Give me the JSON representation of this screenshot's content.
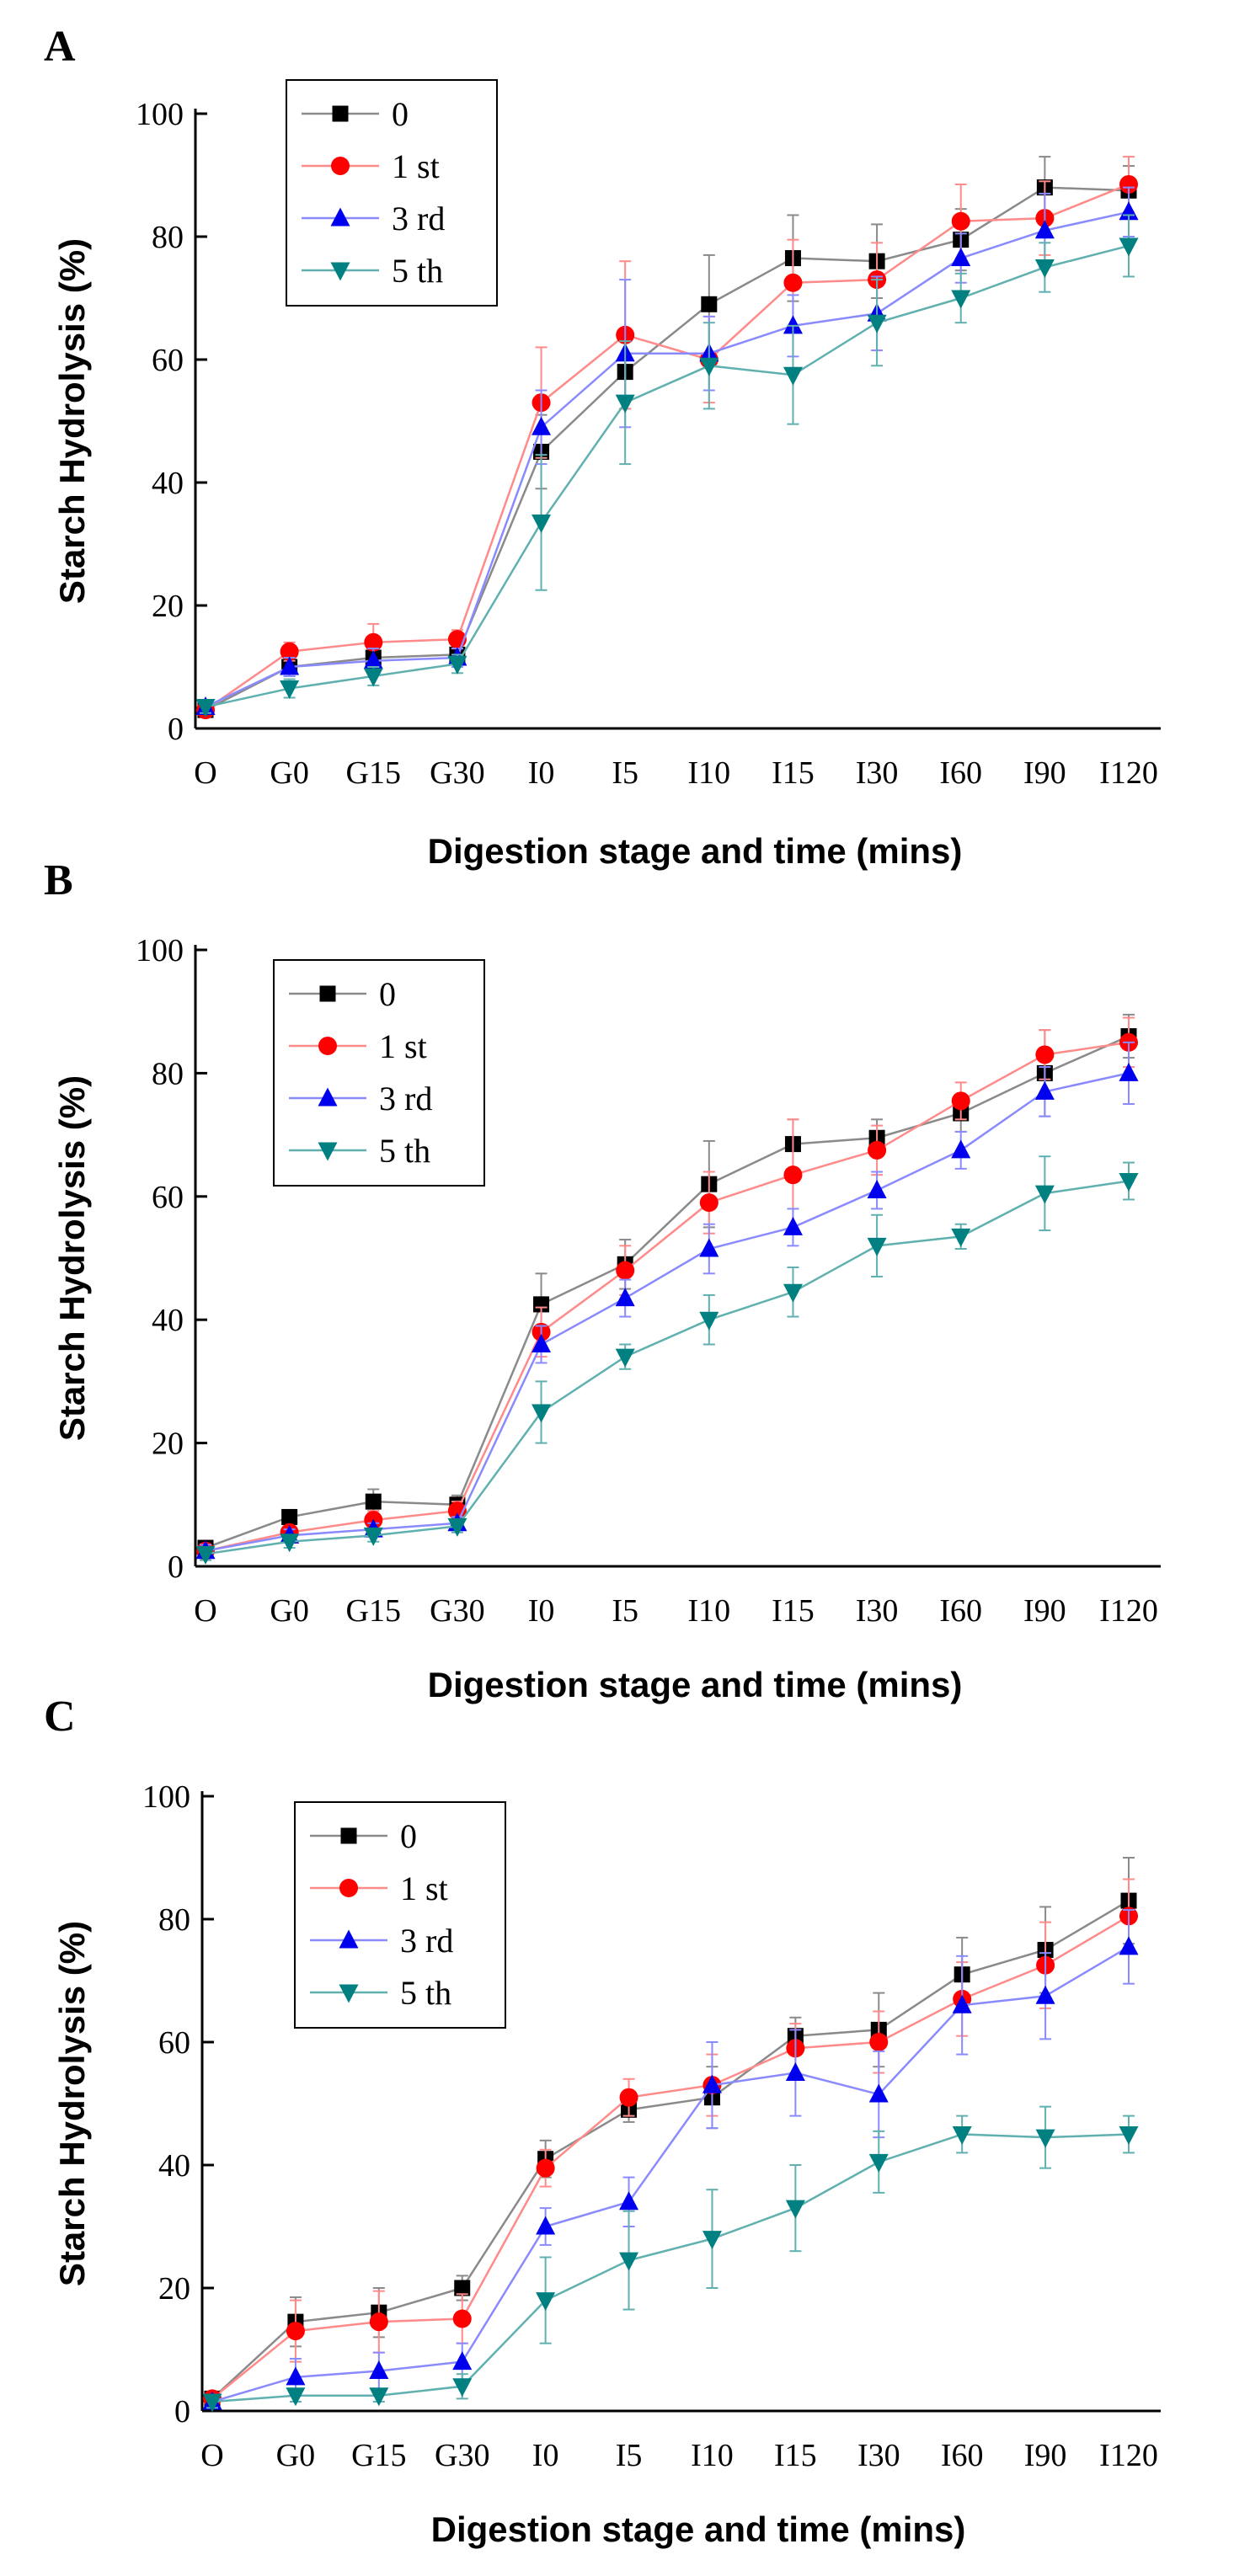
{
  "chart_data": [
    {
      "panel": "A",
      "type": "line",
      "ylabel": "Starch Hydrolysis (%)",
      "xlabel": "Digestion stage and time (mins)",
      "ylim": [
        0,
        100
      ],
      "yticks": [
        0,
        20,
        40,
        60,
        80,
        100
      ],
      "categories": [
        "O",
        "G0",
        "G15",
        "G30",
        "I0",
        "I5",
        "I10",
        "I15",
        "I30",
        "I60",
        "I90",
        "I120"
      ],
      "series": [
        {
          "name": "0",
          "color": "#000000",
          "line": "#8a8a8a",
          "marker": "square",
          "values": [
            3,
            10,
            11.5,
            12,
            45,
            58,
            69,
            76.5,
            76,
            79.5,
            88,
            87.5
          ],
          "errors": [
            1,
            1.5,
            1.5,
            1.5,
            6,
            6,
            8,
            7,
            6,
            5,
            5,
            4
          ]
        },
        {
          "name": "1 st",
          "color": "#ff0000",
          "line": "#ff8a8a",
          "marker": "circle",
          "values": [
            3,
            12.5,
            14,
            14.5,
            53,
            64,
            60,
            72.5,
            73,
            82.5,
            83,
            88.5
          ],
          "errors": [
            1,
            1.5,
            3,
            1.5,
            9,
            12,
            7,
            7,
            6,
            6,
            6,
            4.5
          ]
        },
        {
          "name": "3 rd",
          "color": "#0000ee",
          "line": "#8a8aff",
          "marker": "triangle-up",
          "values": [
            3.5,
            10,
            11,
            11.5,
            49,
            61,
            61,
            65.5,
            67.5,
            76.5,
            81,
            84
          ],
          "errors": [
            1,
            1.5,
            2,
            1.5,
            6,
            12,
            6,
            5,
            6,
            4,
            6,
            4
          ]
        },
        {
          "name": "5 th",
          "color": "#008080",
          "line": "#60b0b0",
          "marker": "triangle-down",
          "values": [
            3.5,
            6.5,
            8.5,
            10.5,
            33.5,
            53,
            59,
            57.5,
            66,
            70,
            75,
            78.5
          ],
          "errors": [
            1,
            1.5,
            1.5,
            1.5,
            11,
            10,
            7,
            8,
            7,
            4,
            4,
            5
          ]
        }
      ],
      "legend": [
        "0",
        "1 st",
        "3 rd",
        "5 th"
      ]
    },
    {
      "panel": "B",
      "type": "line",
      "ylabel": "Starch Hydrolysis (%)",
      "xlabel": "Digestion stage and time (mins)",
      "ylim": [
        0,
        100
      ],
      "yticks": [
        0,
        20,
        40,
        60,
        80,
        100
      ],
      "categories": [
        "O",
        "G0",
        "G15",
        "G30",
        "I0",
        "I5",
        "I10",
        "I15",
        "I30",
        "I60",
        "I90",
        "I120"
      ],
      "series": [
        {
          "name": "0",
          "color": "#000000",
          "line": "#8a8a8a",
          "marker": "square",
          "values": [
            3,
            8,
            10.5,
            10,
            42.5,
            49,
            62,
            68.5,
            69.5,
            73.5,
            80,
            86
          ],
          "errors": [
            1,
            1,
            2,
            1.5,
            5,
            4,
            7,
            4,
            3,
            3,
            7,
            3.5
          ]
        },
        {
          "name": "1 st",
          "color": "#ff0000",
          "line": "#ff8a8a",
          "marker": "circle",
          "values": [
            2.5,
            5.5,
            7.5,
            9,
            38,
            48,
            59,
            63.5,
            67.5,
            75.5,
            83,
            85
          ],
          "errors": [
            1,
            1,
            1.5,
            1.5,
            4,
            4,
            5,
            9,
            4,
            3,
            4,
            4
          ]
        },
        {
          "name": "3 rd",
          "color": "#0000ee",
          "line": "#8a8aff",
          "marker": "triangle-up",
          "values": [
            2.5,
            5,
            6,
            7,
            36,
            43.5,
            51.5,
            55,
            61,
            67.5,
            77,
            80
          ],
          "errors": [
            1,
            1,
            1,
            1,
            3,
            3,
            4,
            3,
            3,
            3,
            4,
            5
          ]
        },
        {
          "name": "5 th",
          "color": "#008080",
          "line": "#60b0b0",
          "marker": "triangle-down",
          "values": [
            2,
            4,
            5,
            6.5,
            25,
            34,
            40,
            44.5,
            52,
            53.5,
            60.5,
            62.5
          ],
          "errors": [
            1,
            1,
            1,
            1,
            5,
            2,
            4,
            4,
            5,
            2,
            6,
            3
          ]
        }
      ],
      "legend": [
        "0",
        "1 st",
        "3 rd",
        "5 th"
      ]
    },
    {
      "panel": "C",
      "type": "line",
      "ylabel": "Starch Hydrolysis (%)",
      "xlabel": "Digestion stage and time (mins)",
      "ylim": [
        0,
        100
      ],
      "yticks": [
        0,
        20,
        40,
        60,
        80,
        100
      ],
      "categories": [
        "O",
        "G0",
        "G15",
        "G30",
        "I0",
        "I5",
        "I10",
        "I15",
        "I30",
        "I60",
        "I90",
        "I120"
      ],
      "series": [
        {
          "name": "0",
          "color": "#000000",
          "line": "#8a8a8a",
          "marker": "square",
          "values": [
            2,
            14.5,
            16,
            20,
            41,
            49,
            51,
            61,
            62,
            71,
            75,
            83
          ],
          "errors": [
            1,
            4,
            4,
            2,
            3,
            2,
            5,
            3,
            6,
            6,
            7,
            7
          ]
        },
        {
          "name": "1 st",
          "color": "#ff0000",
          "line": "#ff8a8a",
          "marker": "circle",
          "values": [
            2,
            13,
            14.5,
            15,
            39.5,
            51,
            53,
            59,
            60,
            67,
            72.5,
            80.5
          ],
          "errors": [
            1,
            5,
            5,
            4,
            3,
            3,
            5,
            4,
            5,
            6,
            7,
            6
          ]
        },
        {
          "name": "3 rd",
          "color": "#0000ee",
          "line": "#8a8aff",
          "marker": "triangle-up",
          "values": [
            1.5,
            5.5,
            6.5,
            8,
            30,
            34,
            53,
            55,
            51.5,
            66,
            67.5,
            75.5
          ],
          "errors": [
            1,
            3,
            3,
            3,
            3,
            4,
            7,
            7,
            7,
            8,
            7,
            6
          ]
        },
        {
          "name": "5 th",
          "color": "#008080",
          "line": "#60b0b0",
          "marker": "triangle-down",
          "values": [
            1.5,
            2.5,
            2.5,
            4,
            18,
            24.5,
            28,
            33,
            40.5,
            45,
            44.5,
            45
          ],
          "errors": [
            1,
            1,
            1,
            2,
            7,
            8,
            8,
            7,
            5,
            3,
            5,
            3
          ]
        }
      ],
      "legend": [
        "0",
        "1 st",
        "3 rd",
        "5 th"
      ]
    }
  ]
}
